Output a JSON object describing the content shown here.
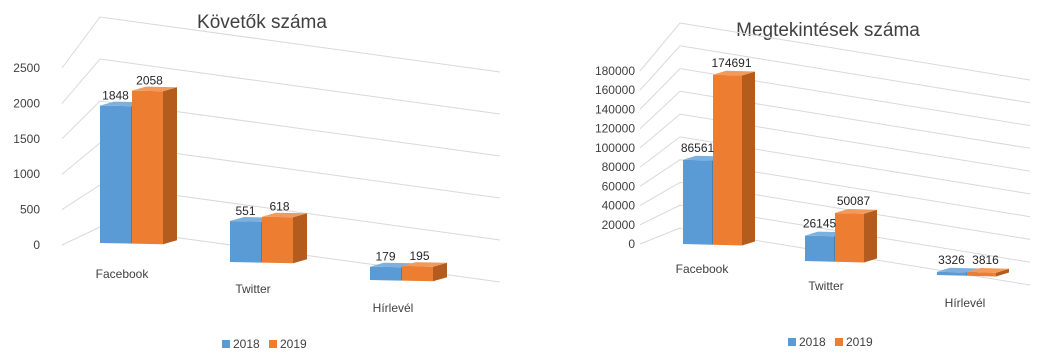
{
  "chart_data": [
    {
      "type": "bar",
      "title": "Követők száma",
      "categories": [
        "Facebook",
        "Twitter",
        "Hírlevél"
      ],
      "series": [
        {
          "name": "2018",
          "values": [
            1848,
            551,
            179
          ]
        },
        {
          "name": "2019",
          "values": [
            2058,
            618,
            195
          ]
        }
      ],
      "yticks": [
        0,
        500,
        1000,
        1500,
        2000,
        2500
      ],
      "ylim": [
        0,
        2500
      ],
      "grid": true,
      "legend": "bottom"
    },
    {
      "type": "bar",
      "title": "Megtekintések száma",
      "categories": [
        "Facebook",
        "Twitter",
        "Hírlevél"
      ],
      "series": [
        {
          "name": "2018",
          "values": [
            86561,
            26145,
            3326
          ]
        },
        {
          "name": "2019",
          "values": [
            174691,
            50087,
            3816
          ]
        }
      ],
      "yticks": [
        0,
        20000,
        40000,
        60000,
        80000,
        100000,
        120000,
        140000,
        160000,
        180000
      ],
      "ylim": [
        0,
        180000
      ],
      "grid": true,
      "legend": "bottom"
    }
  ],
  "colors": {
    "series_2018": "#5b9bd5",
    "series_2018_side": "#4a7fb0",
    "series_2018_top": "#7eb0de",
    "series_2019": "#ed7d31",
    "series_2019_side": "#b35c1e",
    "series_2019_top": "#f19a5c"
  }
}
